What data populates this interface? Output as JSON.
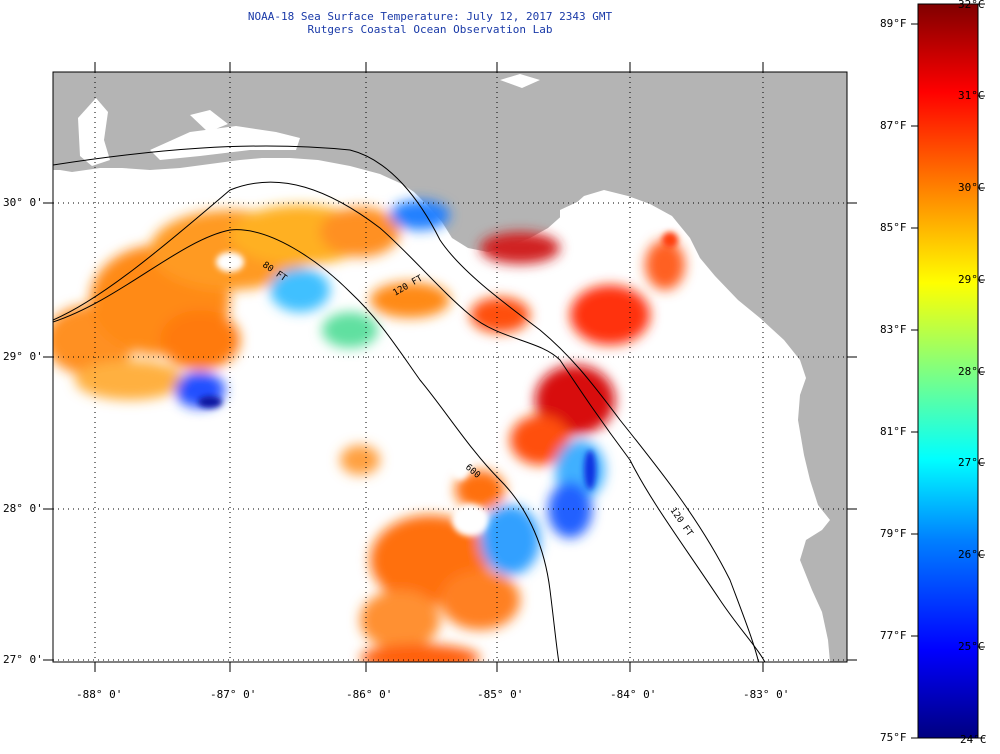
{
  "header": {
    "title": "NOAA-18 Sea Surface Temperature:  July 12, 2017 2343 GMT",
    "subtitle": "Rutgers Coastal Ocean Observation Lab"
  },
  "axes": {
    "lat_labels": [
      "30° 0'",
      "29° 0'",
      "28° 0'",
      "27° 0'"
    ],
    "lon_labels": [
      "-88° 0'",
      "-87° 0'",
      "-86° 0'",
      "-85° 0'",
      "-84° 0'",
      "-83° 0'"
    ]
  },
  "contours": {
    "label_a": "80 FT",
    "label_b": "120 FT",
    "label_c": "600",
    "label_d": "120 FT"
  },
  "colorbar": {
    "fahrenheit": [
      "89°F",
      "87°F",
      "85°F",
      "83°F",
      "81°F",
      "79°F",
      "77°F",
      "75°F"
    ],
    "celsius": [
      "32°C",
      "31°C",
      "30°C",
      "29°C",
      "28°C",
      "27°C",
      "26°C",
      "25°C",
      "24°C"
    ],
    "stops": [
      "#000080",
      "#0000ff",
      "#0080ff",
      "#00ffff",
      "#80ff80",
      "#ffff00",
      "#ff8000",
      "#ff0000",
      "#800000"
    ]
  },
  "colors": {
    "land": "#b4b4b4",
    "water": "#ffffff",
    "title": "#1a3aa8"
  }
}
